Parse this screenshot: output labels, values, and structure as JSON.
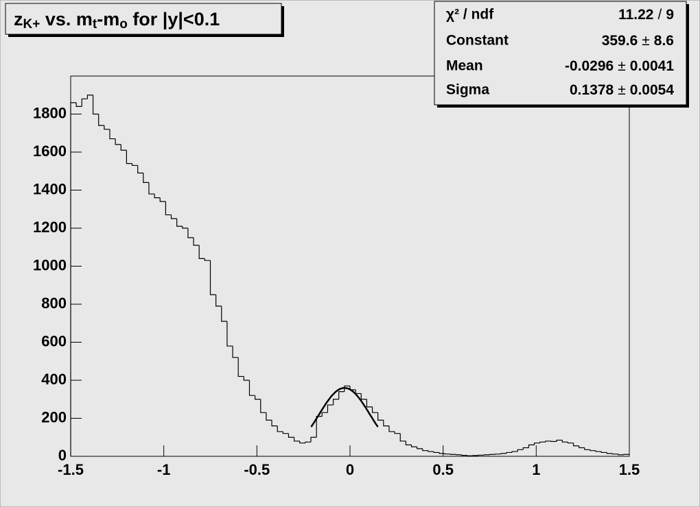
{
  "chart_data": {
    "type": "histogram",
    "title": [
      {
        "text": "z"
      },
      {
        "text": "K+",
        "sub": true
      },
      {
        "text": " vs. m"
      },
      {
        "text": "t",
        "sub": true
      },
      {
        "text": "-m"
      },
      {
        "text": "o",
        "sub": true
      },
      {
        "text": " for |y|<0.1"
      }
    ],
    "bins": [
      -1.5,
      -1.47,
      -1.44,
      -1.41,
      -1.38,
      -1.35,
      -1.32,
      -1.29,
      -1.26,
      -1.23,
      -1.2,
      -1.17,
      -1.14,
      -1.11,
      -1.08,
      -1.05,
      -1.02,
      -0.99,
      -0.96,
      -0.93,
      -0.9,
      -0.87,
      -0.84,
      -0.81,
      -0.78,
      -0.75,
      -0.72,
      -0.69,
      -0.66,
      -0.63,
      -0.6,
      -0.57,
      -0.54,
      -0.51,
      -0.48,
      -0.45,
      -0.42,
      -0.39,
      -0.36,
      -0.33,
      -0.3,
      -0.27,
      -0.24,
      -0.21,
      -0.18,
      -0.15,
      -0.12,
      -0.09,
      -0.06,
      -0.03,
      0,
      0.03,
      0.06,
      0.09,
      0.12,
      0.15,
      0.18,
      0.21,
      0.24,
      0.27,
      0.3,
      0.33,
      0.36,
      0.39,
      0.42,
      0.45,
      0.48,
      0.51,
      0.54,
      0.57,
      0.6,
      0.63,
      0.66,
      0.69,
      0.72,
      0.75,
      0.78,
      0.81,
      0.84,
      0.87,
      0.9,
      0.93,
      0.96,
      0.99,
      1.02,
      1.05,
      1.08,
      1.11,
      1.14,
      1.17,
      1.2,
      1.23,
      1.26,
      1.29,
      1.32,
      1.35,
      1.38,
      1.41,
      1.44,
      1.47,
      1.5
    ],
    "values": [
      1860,
      1840,
      1880,
      1900,
      1800,
      1740,
      1720,
      1670,
      1640,
      1610,
      1540,
      1530,
      1490,
      1440,
      1380,
      1360,
      1340,
      1270,
      1250,
      1210,
      1200,
      1150,
      1110,
      1040,
      1030,
      850,
      790,
      710,
      580,
      520,
      420,
      400,
      320,
      300,
      230,
      190,
      160,
      130,
      120,
      100,
      80,
      70,
      75,
      100,
      210,
      230,
      270,
      300,
      340,
      370,
      350,
      330,
      300,
      260,
      230,
      190,
      160,
      130,
      120,
      80,
      60,
      50,
      40,
      30,
      25,
      20,
      15,
      12,
      10,
      8,
      5,
      3,
      4,
      6,
      8,
      10,
      12,
      15,
      20,
      25,
      35,
      45,
      60,
      70,
      75,
      80,
      78,
      85,
      75,
      70,
      55,
      45,
      35,
      30,
      25,
      20,
      15,
      12,
      8,
      10
    ],
    "color": "#000000",
    "xlim": [
      -1.5,
      1.5
    ],
    "ylim": [
      0,
      2000
    ],
    "xticks": [
      -1.5,
      -1,
      -0.5,
      0,
      0.5,
      1,
      1.5
    ],
    "yticks": [
      0,
      200,
      400,
      600,
      800,
      1000,
      1200,
      1400,
      1600,
      1800
    ],
    "stats": {
      "rows": [
        {
          "label": "χ² / ndf",
          "value": 11.22,
          "separator": "/",
          "error": 9
        },
        {
          "label": "Constant",
          "value": 359.6,
          "separator": "±",
          "error": 8.6
        },
        {
          "label": "Mean",
          "value": -0.0296,
          "separator": "±",
          "error": 0.0041
        },
        {
          "label": "Sigma",
          "value": 0.1378,
          "separator": "±",
          "error": 0.0054
        }
      ]
    }
  }
}
